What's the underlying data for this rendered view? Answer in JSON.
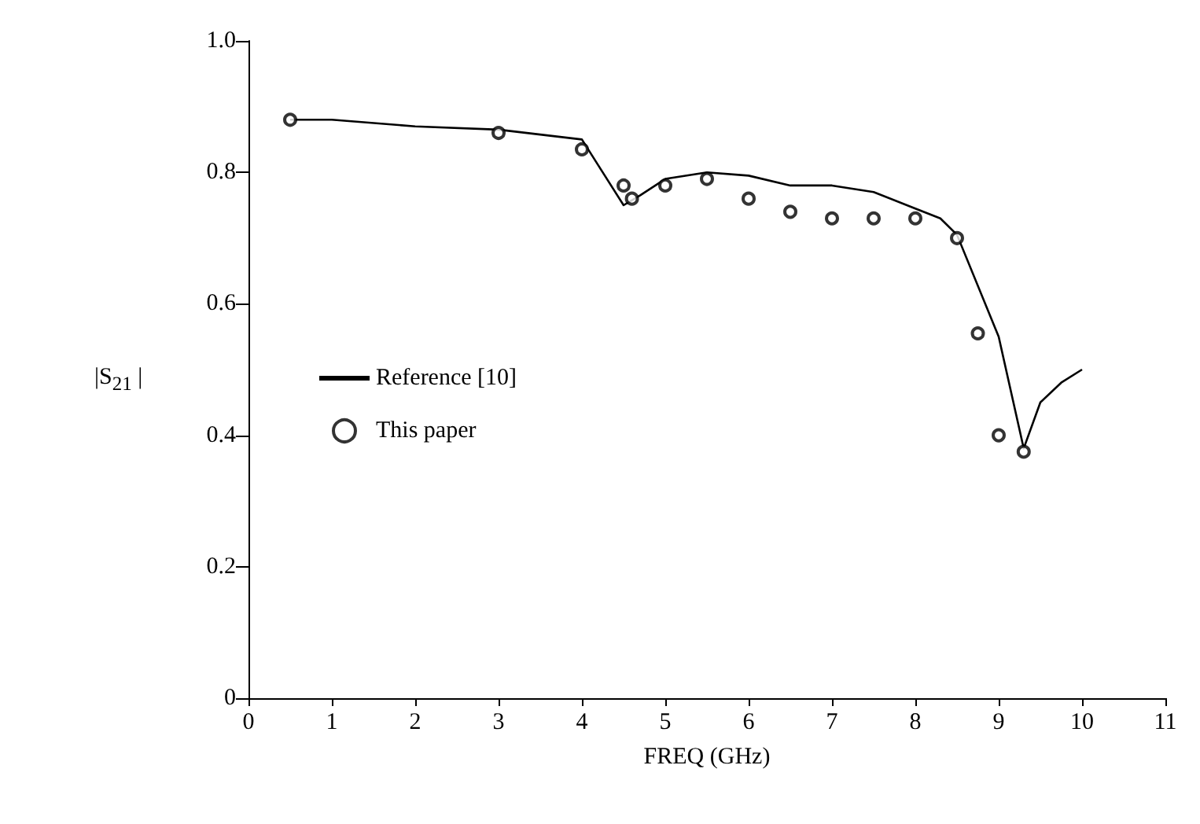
{
  "chart_data": {
    "type": "line",
    "xlabel": "FREQ (GHz)",
    "ylabel": "|S$_{21}$ |",
    "series": [
      {
        "name": "Reference [10]",
        "color": "#000000",
        "marker": "none",
        "x": [
          0.5,
          1,
          2,
          3,
          4,
          4.2,
          4.5,
          4.7,
          5,
          5.5,
          6,
          6.5,
          7,
          7.5,
          8,
          8.3,
          8.5,
          9,
          9.3,
          9.5,
          9.75,
          10
        ],
        "values": [
          0.88,
          0.88,
          0.87,
          0.865,
          0.85,
          0.81,
          0.75,
          0.765,
          0.79,
          0.8,
          0.795,
          0.78,
          0.78,
          0.77,
          0.745,
          0.73,
          0.705,
          0.55,
          0.38,
          0.45,
          0.48,
          0.5
        ]
      },
      {
        "name": "This paper",
        "type": "scatter",
        "color": "#000000",
        "marker": "circle",
        "x": [
          0.5,
          3,
          4,
          4.5,
          4.6,
          5,
          5.5,
          6,
          6.5,
          7,
          7.5,
          8,
          8.5,
          8.75,
          9,
          9.3
        ],
        "values": [
          0.88,
          0.86,
          0.835,
          0.78,
          0.76,
          0.78,
          0.79,
          0.76,
          0.74,
          0.73,
          0.73,
          0.73,
          0.7,
          0.555,
          0.4,
          0.375
        ]
      }
    ],
    "xlim": [
      0,
      11
    ],
    "xticks": [
      0,
      1,
      2,
      3,
      4,
      5,
      6,
      7,
      8,
      9,
      10,
      11
    ],
    "ylim": [
      0,
      1
    ],
    "yticks": [
      0,
      {
        "value": 0.2,
        "label": "0.2"
      },
      {
        "value": 0.4,
        "label": "0.4"
      },
      {
        "value": 0.6,
        "label": "0.6"
      },
      {
        "value": 0.8,
        "label": "0.8"
      },
      {
        "value": 1,
        "label": "1.0"
      }
    ],
    "grid": false,
    "legend": "left"
  }
}
